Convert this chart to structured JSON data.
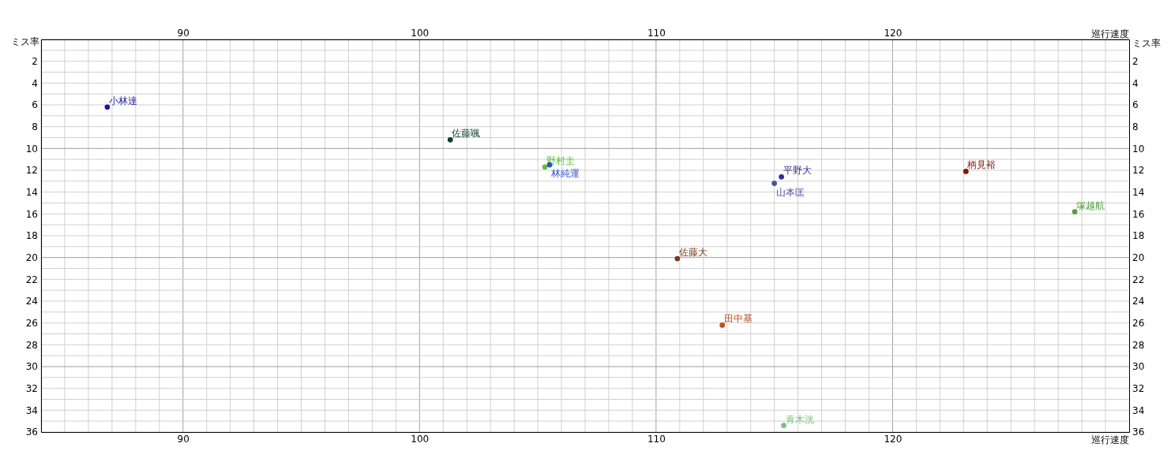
{
  "chart_data": {
    "type": "scatter",
    "xlabel": "巡行速度",
    "x2label": "巡行速度",
    "ylabel": "ミス率",
    "y2label": "ミス率",
    "xlim": [
      84,
      130
    ],
    "x2lim": [
      84,
      130
    ],
    "ylim": [
      36,
      0
    ],
    "y2lim": [
      36,
      0
    ],
    "xticks": [
      {
        "value": 84,
        "label": null
      },
      {
        "value": 85,
        "label": null
      },
      {
        "value": 86,
        "label": null
      },
      {
        "value": 87,
        "label": null
      },
      {
        "value": 88,
        "label": null
      },
      {
        "value": 89,
        "label": null
      },
      90,
      {
        "value": 91,
        "label": null
      },
      {
        "value": 92,
        "label": null
      },
      {
        "value": 93,
        "label": null
      },
      {
        "value": 94,
        "label": null
      },
      {
        "value": 95,
        "label": null
      },
      {
        "value": 96,
        "label": null
      },
      {
        "value": 97,
        "label": null
      },
      {
        "value": 98,
        "label": null
      },
      {
        "value": 99,
        "label": null
      },
      100,
      {
        "value": 101,
        "label": null
      },
      {
        "value": 102,
        "label": null
      },
      {
        "value": 103,
        "label": null
      },
      {
        "value": 104,
        "label": null
      },
      {
        "value": 105,
        "label": null
      },
      {
        "value": 106,
        "label": null
      },
      {
        "value": 107,
        "label": null
      },
      {
        "value": 108,
        "label": null
      },
      {
        "value": 109,
        "label": null
      },
      110,
      {
        "value": 111,
        "label": null
      },
      {
        "value": 112,
        "label": null
      },
      {
        "value": 113,
        "label": null
      },
      {
        "value": 114,
        "label": null
      },
      {
        "value": 115,
        "label": null
      },
      {
        "value": 116,
        "label": null
      },
      {
        "value": 117,
        "label": null
      },
      {
        "value": 118,
        "label": null
      },
      {
        "value": 119,
        "label": null
      },
      120,
      {
        "value": 121,
        "label": null
      },
      {
        "value": 122,
        "label": null
      },
      {
        "value": 123,
        "label": null
      },
      {
        "value": 124,
        "label": null
      },
      {
        "value": 125,
        "label": null
      },
      {
        "value": 126,
        "label": null
      },
      {
        "value": 127,
        "label": null
      },
      {
        "value": 128,
        "label": null
      },
      {
        "value": 129,
        "label": null
      }
    ],
    "x2ticks": [
      90,
      100,
      110,
      120
    ],
    "yticks": [
      {
        "value": 0,
        "label": null
      },
      {
        "value": 1,
        "label": null
      },
      2,
      {
        "value": 3,
        "label": null
      },
      4,
      {
        "value": 5,
        "label": null
      },
      6,
      {
        "value": 7,
        "label": null
      },
      8,
      {
        "value": 9,
        "label": null
      },
      10,
      {
        "value": 11,
        "label": null
      },
      12,
      {
        "value": 13,
        "label": null
      },
      14,
      {
        "value": 15,
        "label": null
      },
      16,
      {
        "value": 17,
        "label": null
      },
      18,
      {
        "value": 19,
        "label": null
      },
      20,
      {
        "value": 21,
        "label": null
      },
      22,
      {
        "value": 23,
        "label": null
      },
      24,
      {
        "value": 25,
        "label": null
      },
      26,
      {
        "value": 27,
        "label": null
      },
      28,
      {
        "value": 29,
        "label": null
      },
      30,
      {
        "value": 31,
        "label": null
      },
      32,
      {
        "value": 33,
        "label": null
      },
      34,
      {
        "value": 35,
        "label": null
      },
      36
    ],
    "y2ticks": [
      2,
      4,
      6,
      8,
      10,
      12,
      14,
      16,
      18,
      20,
      22,
      24,
      26,
      28,
      30,
      32,
      34,
      36
    ],
    "grid": true,
    "marker": "circle",
    "series": [
      {
        "name": "小林達",
        "color": "#1a1aa0",
        "x": [
          86.8
        ],
        "values": [
          6.2
        ]
      },
      {
        "name": "佐藤颯",
        "color": "#0a3d2e",
        "x": [
          101.3
        ],
        "values": [
          9.2
        ]
      },
      {
        "name": "野村圭",
        "color": "#5fbf3f",
        "x": [
          105.3
        ],
        "values": [
          11.7
        ]
      },
      {
        "name": "林純運",
        "color": "#3050d0",
        "x": [
          105.5
        ],
        "values": [
          11.5
        ]
      },
      {
        "name": "平野大",
        "color": "#303090",
        "x": [
          115.3
        ],
        "values": [
          12.6
        ]
      },
      {
        "name": "山本匡",
        "color": "#5050a0",
        "x": [
          115.0
        ],
        "values": [
          13.2
        ]
      },
      {
        "name": "柄見裕",
        "color": "#7a1a0a",
        "x": [
          123.1
        ],
        "values": [
          12.1
        ]
      },
      {
        "name": "塚越航",
        "color": "#50a040",
        "x": [
          127.7
        ],
        "values": [
          15.8
        ]
      },
      {
        "name": "佐藤大",
        "color": "#7a3a1a",
        "x": [
          110.9
        ],
        "values": [
          20.1
        ]
      },
      {
        "name": "田中基",
        "color": "#c05020",
        "x": [
          112.8
        ],
        "values": [
          26.2
        ]
      },
      {
        "name": "青木洸",
        "color": "#80c080",
        "x": [
          115.4
        ],
        "values": [
          35.4
        ]
      }
    ]
  }
}
